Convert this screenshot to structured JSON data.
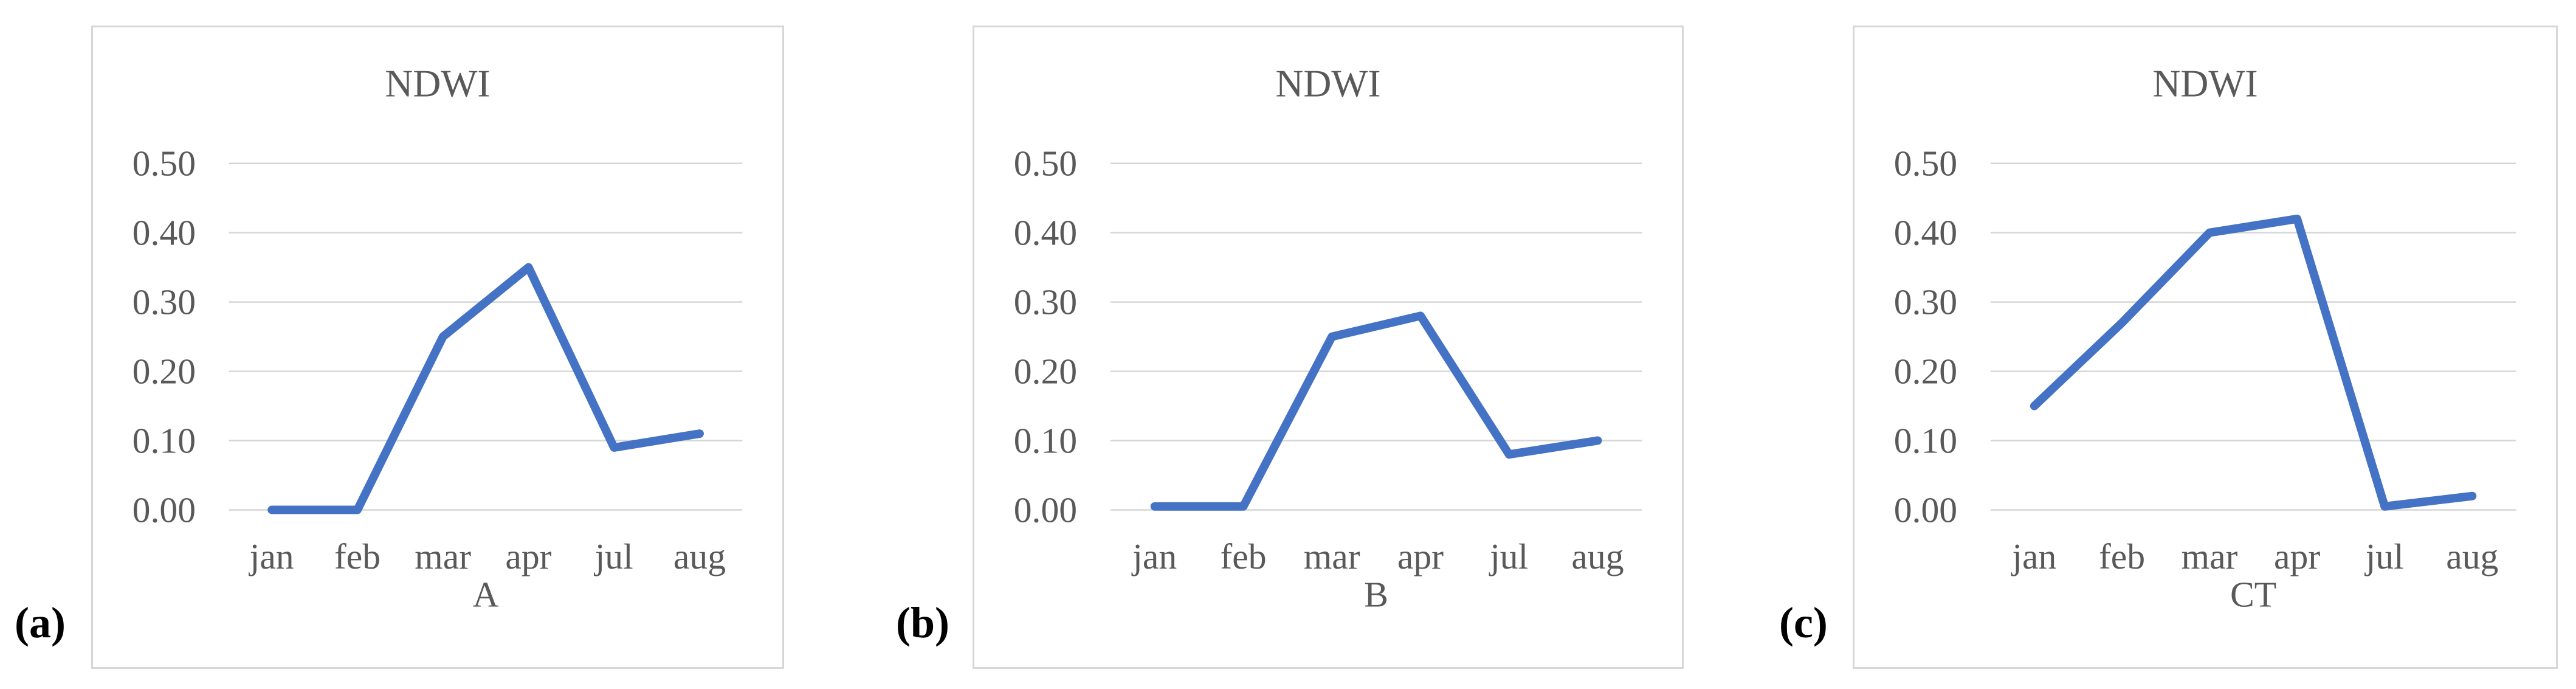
{
  "figure": {
    "panel_labels": [
      "(a)",
      "(b)",
      "(c)"
    ]
  },
  "colors": {
    "line": "#4472C4",
    "gridline": "#d6d6d6",
    "axis_text": "#595959",
    "title_text": "#595959",
    "panel_border": "#d7d7d7",
    "panel_tag": "#000000"
  },
  "chart_data": [
    {
      "type": "line",
      "title": "NDWI",
      "xlabel": "A",
      "ylabel": "",
      "categories": [
        "jan",
        "feb",
        "mar",
        "apr",
        "jul",
        "aug"
      ],
      "values": [
        0.0,
        0.0,
        0.25,
        0.35,
        0.09,
        0.11
      ],
      "ylim": [
        0.0,
        0.5
      ],
      "ytick_labels": [
        "0.50",
        "0.40",
        "0.30",
        "0.20",
        "0.10",
        "0.00"
      ],
      "ytick_values": [
        0.5,
        0.4,
        0.3,
        0.2,
        0.1,
        0.0
      ],
      "grid": "horizontal",
      "legend": "none"
    },
    {
      "type": "line",
      "title": "NDWI",
      "xlabel": "B",
      "ylabel": "",
      "categories": [
        "jan",
        "feb",
        "mar",
        "apr",
        "jul",
        "aug"
      ],
      "values": [
        0.005,
        0.005,
        0.25,
        0.28,
        0.08,
        0.1
      ],
      "ylim": [
        0.0,
        0.5
      ],
      "ytick_labels": [
        "0.50",
        "0.40",
        "0.30",
        "0.20",
        "0.10",
        "0.00"
      ],
      "ytick_values": [
        0.5,
        0.4,
        0.3,
        0.2,
        0.1,
        0.0
      ],
      "grid": "horizontal",
      "legend": "none"
    },
    {
      "type": "line",
      "title": "NDWI",
      "xlabel": "CT",
      "ylabel": "",
      "categories": [
        "jan",
        "feb",
        "mar",
        "apr",
        "jul",
        "aug"
      ],
      "values": [
        0.15,
        0.27,
        0.4,
        0.42,
        0.005,
        0.02
      ],
      "ylim": [
        0.0,
        0.5
      ],
      "ytick_labels": [
        "0.50",
        "0.40",
        "0.30",
        "0.20",
        "0.10",
        "0.00"
      ],
      "ytick_values": [
        0.5,
        0.4,
        0.3,
        0.2,
        0.1,
        0.0
      ],
      "grid": "horizontal",
      "legend": "none"
    }
  ]
}
